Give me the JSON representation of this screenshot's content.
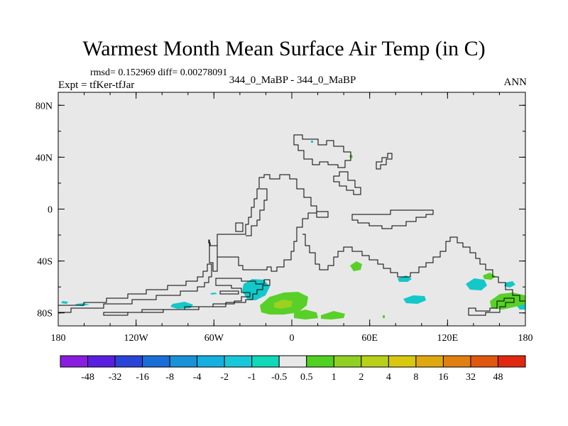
{
  "title": "Warmest Month Mean Surface Air Temp (in C)",
  "stats": "rmsd= 0.152969 diff= 0.00278091",
  "experiment": "Expt = tfKer-tfJar",
  "comparison": "344_0_MaBP - 344_0_MaBP",
  "period": "ANN",
  "map": {
    "lon_range": [
      -180,
      180
    ],
    "lat_range": [
      -90,
      90
    ],
    "background": "#e8e8e8",
    "lat_ticks": [
      {
        "lat": 80,
        "label": "80N"
      },
      {
        "lat": 40,
        "label": "40N"
      },
      {
        "lat": 0,
        "label": "0"
      },
      {
        "lat": -40,
        "label": "40S"
      },
      {
        "lat": -80,
        "label": "80S"
      }
    ],
    "lon_ticks": [
      {
        "lon": -180,
        "label": "180"
      },
      {
        "lon": -120,
        "label": "120W"
      },
      {
        "lon": -60,
        "label": "60W"
      },
      {
        "lon": 0,
        "label": "0"
      },
      {
        "lon": 60,
        "label": "60E"
      },
      {
        "lon": 120,
        "label": "120E"
      },
      {
        "lon": 180,
        "label": "180"
      }
    ]
  },
  "colorbar": {
    "colors": [
      "#8a1ce0",
      "#5a1ee0",
      "#2a44d8",
      "#1a6ed8",
      "#1a92d8",
      "#14b0e0",
      "#18c8d8",
      "#10d8b8",
      "#e8e8e8",
      "#50d020",
      "#90d020",
      "#b8d018",
      "#d8c810",
      "#e0a810",
      "#e08010",
      "#e05810",
      "#e02810"
    ],
    "labels": [
      "-48",
      "-32",
      "-16",
      "-8",
      "-4",
      "-2",
      "-1",
      "-0.5",
      "0.5",
      "1",
      "2",
      "4",
      "8",
      "16",
      "32",
      "48"
    ]
  }
}
